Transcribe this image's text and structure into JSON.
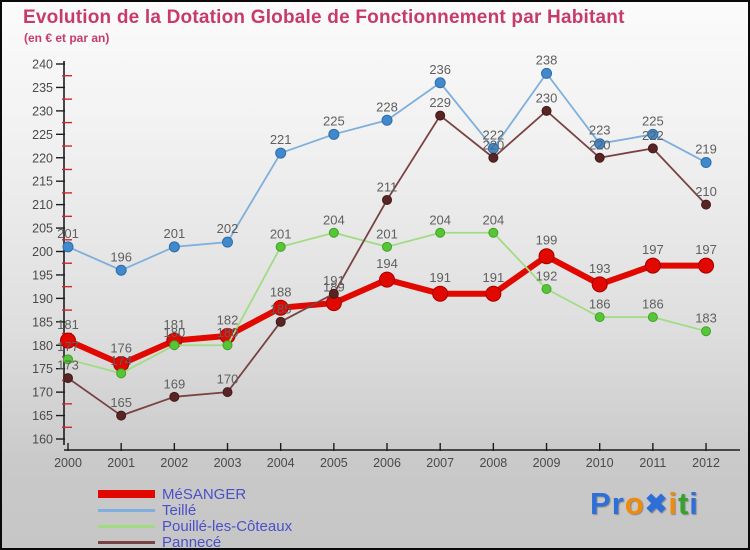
{
  "title": "Evolution de la Dotation Globale de Fonctionnement par Habitant",
  "subtitle": "(en € et par an)",
  "colors": {
    "title": "#c73b6b",
    "axis": "#1c1c1c",
    "minor_tick": "#cc2a2a",
    "tick_label": "#4a4a4a",
    "point_label": "#606060",
    "legend_text": "#4b50c8"
  },
  "chart_data": {
    "type": "line",
    "x": [
      2000,
      2001,
      2002,
      2003,
      2004,
      2005,
      2006,
      2007,
      2008,
      2009,
      2010,
      2011,
      2012
    ],
    "ylim": [
      160,
      240
    ],
    "ytick_step": 5,
    "minor_tick_step": 2.5,
    "grid": false,
    "legend_position": "bottom-left",
    "series": [
      {
        "name": "MéSANGER",
        "line_color": "#e10800",
        "marker_color": "#e10800",
        "marker_stroke": "#a50000",
        "line_width": 6,
        "marker_r": 7.5,
        "values": [
          181,
          176,
          181,
          182,
          188,
          189,
          194,
          191,
          191,
          199,
          193,
          197,
          197
        ]
      },
      {
        "name": "Teillé",
        "line_color": "#7fafdc",
        "marker_color": "#4189cd",
        "marker_stroke": "#2f6ea8",
        "line_width": 1.8,
        "marker_r": 5,
        "values": [
          201,
          196,
          201,
          202,
          221,
          225,
          228,
          236,
          222,
          238,
          223,
          225,
          219
        ]
      },
      {
        "name": "Pouillé-les-Côteaux",
        "line_color": "#a0dc82",
        "marker_color": "#55c636",
        "marker_stroke": "#44a028",
        "line_width": 1.8,
        "marker_r": 4.5,
        "values": [
          177,
          174,
          180,
          180,
          201,
          204,
          201,
          204,
          204,
          192,
          186,
          186,
          183
        ]
      },
      {
        "name": "Pannecé",
        "line_color": "#7a4343",
        "marker_color": "#582424",
        "marker_stroke": "#431a1a",
        "line_width": 1.8,
        "marker_r": 4.5,
        "values": [
          173,
          165,
          169,
          170,
          185,
          191,
          211,
          229,
          220,
          230,
          220,
          222,
          210
        ]
      }
    ],
    "draw_order": [
      1,
      0,
      2,
      3
    ]
  },
  "legend": [
    {
      "label": "MéSANGER",
      "color": "#e10800",
      "thick": true
    },
    {
      "label": "Teillé",
      "color": "#7fafdc",
      "thick": false
    },
    {
      "label": "Pouillé-les-Côteaux",
      "color": "#a0dc82",
      "thick": false
    },
    {
      "label": "Pannecé",
      "color": "#7a4343",
      "thick": false
    }
  ],
  "logo": {
    "name": "Proxiti",
    "letters": [
      {
        "ch": "P",
        "color": "#2d6fd6"
      },
      {
        "ch": "r",
        "color": "#2d6fd6"
      },
      {
        "ch": "o",
        "color": "#ef8b0b"
      },
      {
        "ch": "✖",
        "color": "#2d6fd6"
      },
      {
        "ch": "i",
        "color": "#ef8b0b"
      },
      {
        "ch": "t",
        "color": "#35a22d"
      },
      {
        "ch": "i",
        "color": "#2d6fd6"
      }
    ]
  }
}
